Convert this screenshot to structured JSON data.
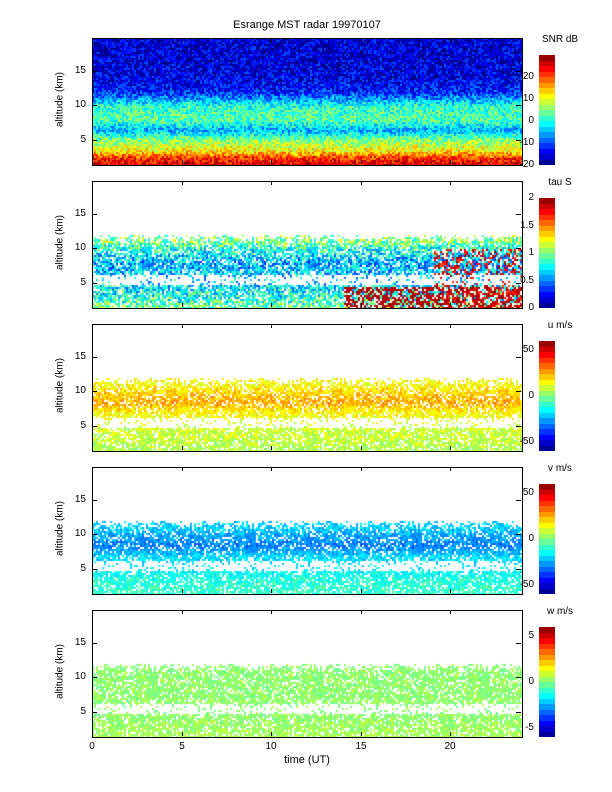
{
  "chart_data": {
    "type": "heatmap",
    "title": "Esrange MST radar 19970107",
    "xlabel": "time (UT)",
    "xlim": [
      0,
      24
    ],
    "xticks": [
      "0",
      "5",
      "10",
      "15",
      "20"
    ],
    "xtick_values": [
      0,
      5,
      10,
      15,
      20
    ],
    "ylim": [
      1.4,
      19.7
    ],
    "colormap": "jet",
    "panels": [
      {
        "ylabel": "altitude (km)",
        "yticks": [
          "5",
          "10",
          "15"
        ],
        "cbar_title": "SNR dB",
        "clim": [
          -20,
          30
        ],
        "cticks": [
          "-20",
          "-10",
          "0",
          "10",
          "20"
        ],
        "ctick_values": [
          -20,
          -10,
          0,
          10,
          20
        ],
        "profile_alt": [
          1.4,
          2.5,
          3.5,
          5,
          6.5,
          8,
          10,
          11,
          12,
          14,
          19.7
        ],
        "profile_val": [
          26,
          22,
          12,
          6,
          -5,
          3,
          1,
          -6,
          -12,
          -15,
          -16
        ],
        "noise": 6,
        "coverage_top": 19.7
      },
      {
        "ylabel": "altitude (km)",
        "yticks": [
          "5",
          "10",
          "15"
        ],
        "cbar_title": "tau S",
        "clim": [
          0,
          2
        ],
        "cticks": [
          "0",
          "0.5",
          "1",
          "1.5",
          "2"
        ],
        "ctick_values": [
          0,
          0.5,
          1,
          1.5,
          2
        ],
        "profile_alt": [
          1.4,
          3,
          5,
          8,
          10,
          11
        ],
        "profile_val": [
          1.0,
          0.8,
          0.7,
          0.6,
          0.8,
          1.0
        ],
        "noise": 0.3,
        "coverage_top": 11,
        "late_low_alt_value": 1.9
      },
      {
        "ylabel": "altitude (km)",
        "yticks": [
          "5",
          "10",
          "15"
        ],
        "cbar_title": "u m/s",
        "clim": [
          -60,
          60
        ],
        "cticks": [
          "-50",
          "0",
          "50"
        ],
        "ctick_values": [
          -50,
          0,
          50
        ],
        "profile_alt": [
          1.4,
          3,
          5,
          7,
          8.5,
          10,
          11
        ],
        "profile_val": [
          5,
          8,
          10,
          15,
          25,
          20,
          15
        ],
        "noise": 7,
        "coverage_top": 11
      },
      {
        "ylabel": "altitude (km)",
        "yticks": [
          "5",
          "10",
          "15"
        ],
        "cbar_title": "v m/s",
        "clim": [
          -60,
          60
        ],
        "cticks": [
          "-50",
          "0",
          "50"
        ],
        "ctick_values": [
          -50,
          0,
          50
        ],
        "profile_alt": [
          1.4,
          3,
          5,
          7,
          8.5,
          10,
          11
        ],
        "profile_val": [
          -8,
          -10,
          -15,
          -20,
          -30,
          -25,
          -20
        ],
        "noise": 7,
        "coverage_top": 11
      },
      {
        "ylabel": "altitude (km)",
        "yticks": [
          "5",
          "10",
          "15"
        ],
        "cbar_title": "w m/s",
        "clim": [
          -6,
          6
        ],
        "cticks": [
          "-5",
          "0",
          "5"
        ],
        "ctick_values": [
          -5,
          0,
          5
        ],
        "profile_alt": [
          1.4,
          5,
          11
        ],
        "profile_val": [
          0.5,
          0.2,
          0.2
        ],
        "noise": 0.5,
        "coverage_top": 11
      }
    ]
  }
}
